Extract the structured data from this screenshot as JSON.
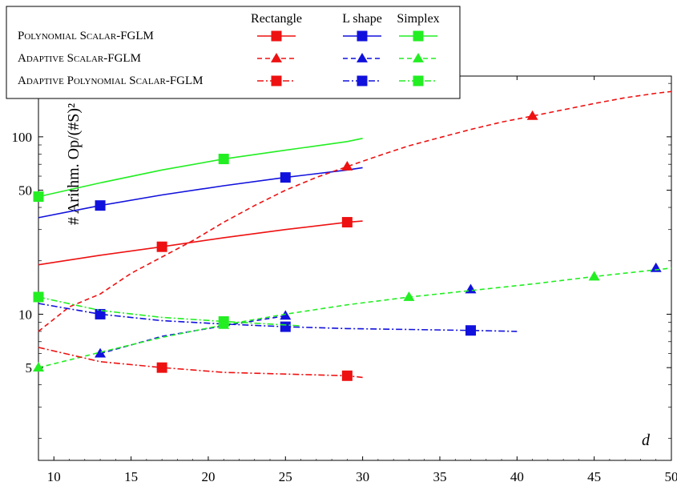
{
  "chart_data": {
    "type": "line",
    "xlabel": "d",
    "ylabel": "# Arithm. Op/(#S)²",
    "y_scale": "log",
    "xlim": [
      9,
      50
    ],
    "ylim": [
      1.5,
      220
    ],
    "grid": false,
    "legend_placement": "top-left",
    "x_ticks": [
      10,
      15,
      20,
      25,
      30,
      35,
      40,
      45,
      50
    ],
    "y_ticks": [
      5,
      10,
      50,
      100
    ],
    "y_tick_labels": [
      "5",
      "10",
      "50",
      "100"
    ],
    "legend": {
      "columns": [
        "Rectangle",
        "L shape",
        "Simplex"
      ],
      "rows": [
        "Polynomial Scalar-FGLM",
        "Adaptive Scalar-FGLM",
        "Adaptive Polynomial Scalar-FGLM"
      ]
    },
    "series": [
      {
        "method": 0,
        "domain": 0,
        "color": "#ee1111",
        "dash": "",
        "marker": "square",
        "x": [
          9,
          13,
          17,
          21,
          25,
          29,
          30
        ],
        "y": [
          19,
          21.5,
          24,
          27,
          30,
          33,
          33.5
        ],
        "marker_x": [
          17,
          29
        ],
        "marker_y": [
          24,
          33
        ]
      },
      {
        "method": 0,
        "domain": 1,
        "color": "#1111dd",
        "dash": "",
        "marker": "square",
        "x": [
          9,
          13,
          17,
          21,
          25,
          29,
          30
        ],
        "y": [
          35,
          41,
          47,
          53,
          59,
          65,
          67
        ],
        "marker_x": [
          13,
          25
        ],
        "marker_y": [
          41,
          59
        ]
      },
      {
        "method": 0,
        "domain": 2,
        "color": "#22ee22",
        "dash": "",
        "marker": "square",
        "x": [
          9,
          13,
          17,
          21,
          25,
          29,
          30
        ],
        "y": [
          46,
          55,
          65,
          75,
          84,
          94,
          98
        ],
        "marker_x": [
          9,
          21
        ],
        "marker_y": [
          46,
          75
        ]
      },
      {
        "method": 1,
        "domain": 0,
        "color": "#ee1111",
        "dash": "6,4",
        "marker": "triangle",
        "x": [
          9,
          11,
          13,
          15,
          17,
          19,
          21,
          23,
          25,
          27,
          29,
          31,
          33,
          35,
          37,
          39,
          41,
          43,
          45,
          47,
          49,
          50
        ],
        "y": [
          8,
          11,
          13,
          17,
          21,
          26,
          33,
          41,
          50,
          59,
          68,
          78,
          89,
          99,
          110,
          121,
          131,
          142,
          154,
          166,
          176,
          180
        ],
        "marker_x": [
          29,
          41
        ],
        "marker_y": [
          68,
          131
        ]
      },
      {
        "method": 1,
        "domain": 1,
        "color": "#1111dd",
        "dash": "6,4",
        "marker": "triangle",
        "x": [
          13,
          17,
          21,
          25
        ],
        "y": [
          6,
          7.5,
          8.6,
          9.8
        ],
        "marker_x": [
          13,
          25,
          37,
          49
        ],
        "marker_y": [
          6,
          9.8,
          13.8,
          18.2
        ]
      },
      {
        "method": 1,
        "domain": 2,
        "color": "#22ee22",
        "dash": "6,4",
        "marker": "triangle",
        "x": [
          9,
          13,
          17,
          21,
          25,
          29,
          33,
          37,
          41,
          45,
          49,
          50
        ],
        "y": [
          5,
          6.1,
          7.4,
          8.7,
          10,
          11.3,
          12.5,
          13.6,
          14.8,
          16.3,
          17.8,
          18.2
        ],
        "marker_x": [
          9,
          21,
          33,
          45
        ],
        "marker_y": [
          5,
          8.7,
          12.5,
          16.3
        ]
      },
      {
        "method": 2,
        "domain": 0,
        "color": "#ee1111",
        "dash": "8,3,2,3",
        "marker": "square",
        "x": [
          9,
          13,
          17,
          21,
          25,
          29,
          30
        ],
        "y": [
          6.5,
          5.4,
          5,
          4.7,
          4.6,
          4.5,
          4.4
        ],
        "marker_x": [
          17,
          29
        ],
        "marker_y": [
          5,
          4.5
        ]
      },
      {
        "method": 2,
        "domain": 1,
        "color": "#1111dd",
        "dash": "8,3,2,3",
        "marker": "square",
        "x": [
          9,
          13,
          17,
          21,
          25,
          29,
          33,
          37,
          40
        ],
        "y": [
          11.5,
          10,
          9.2,
          8.8,
          8.5,
          8.3,
          8.2,
          8.1,
          8
        ],
        "marker_x": [
          13,
          25,
          37
        ],
        "marker_y": [
          10,
          8.5,
          8.1
        ]
      },
      {
        "method": 2,
        "domain": 2,
        "color": "#22ee22",
        "dash": "8,3,2,3",
        "marker": "square",
        "x": [
          9,
          13,
          17,
          21,
          25,
          26
        ],
        "y": [
          12.5,
          10.5,
          9.6,
          9.1,
          8.7,
          8.6
        ],
        "marker_x": [
          9,
          21
        ],
        "marker_y": [
          12.5,
          9.1
        ]
      }
    ]
  }
}
